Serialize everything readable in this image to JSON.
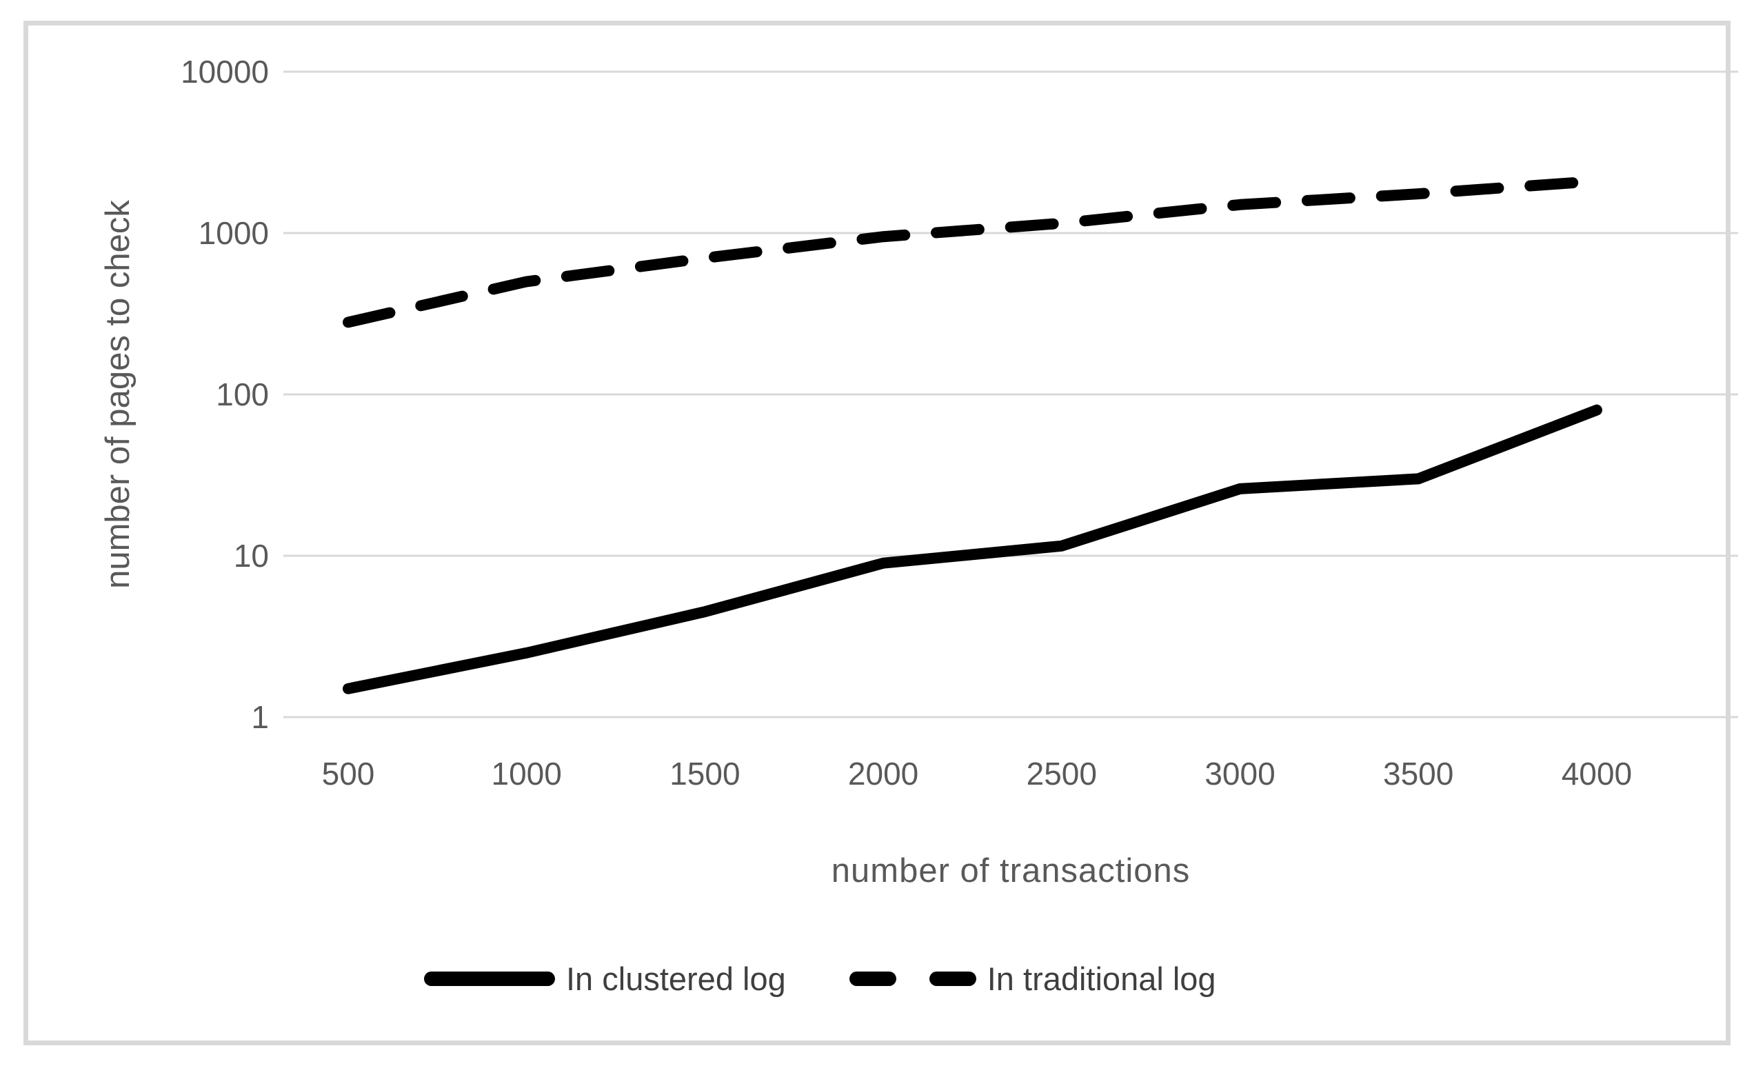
{
  "figure": {
    "kind": "excel-style line chart on log y-axis",
    "background": "#ffffff"
  },
  "colors": {
    "gridline": "#d9d9d9",
    "frame_border": "#d9d9d9",
    "tick_text": "#595959",
    "axis_title_text": "#595959",
    "legend_text": "#3f3f3f",
    "series_line": "#000000"
  },
  "legend": [
    {
      "label": "In clustered log",
      "style": "solid"
    },
    {
      "label": "In traditional log",
      "style": "dashed"
    }
  ],
  "chart_data": {
    "type": "line",
    "title": "",
    "xlabel": "number of transactions",
    "ylabel": "number of pages to check",
    "x": [
      500,
      1000,
      1500,
      2000,
      2500,
      3000,
      3500,
      4000
    ],
    "x_tick_labels": [
      "500",
      "1000",
      "1500",
      "2000",
      "2500",
      "3000",
      "3500",
      "4000"
    ],
    "series": [
      {
        "name": "In clustered log",
        "line_style": "solid",
        "color": "#000000",
        "values": [
          1.5,
          2.5,
          4.5,
          9,
          11.5,
          26,
          30,
          80
        ]
      },
      {
        "name": "In traditional log",
        "line_style": "dashed",
        "color": "#000000",
        "values": [
          280,
          500,
          700,
          950,
          1150,
          1500,
          1750,
          2100
        ]
      }
    ],
    "y_scale": "log",
    "ylim": [
      1,
      10000
    ],
    "xlim": [
      320,
      4400
    ],
    "y_gridlines": [
      10000,
      1000,
      100,
      10,
      1
    ],
    "y_tick_labels": [
      "10000",
      "1000",
      "100",
      "10",
      "1"
    ],
    "grid": "horizontal-only",
    "legend_position": "bottom"
  }
}
